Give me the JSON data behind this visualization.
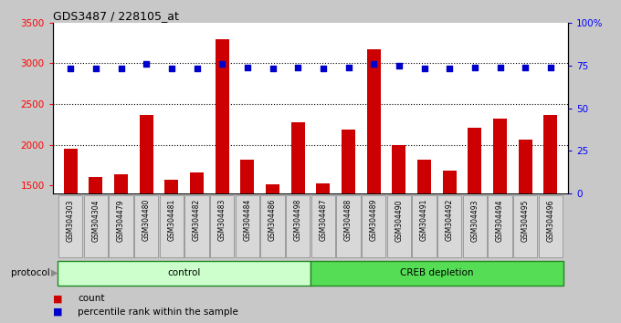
{
  "title": "GDS3487 / 228105_at",
  "samples": [
    "GSM304303",
    "GSM304304",
    "GSM304479",
    "GSM304480",
    "GSM304481",
    "GSM304482",
    "GSM304483",
    "GSM304484",
    "GSM304486",
    "GSM304498",
    "GSM304487",
    "GSM304488",
    "GSM304489",
    "GSM304490",
    "GSM304491",
    "GSM304492",
    "GSM304493",
    "GSM304494",
    "GSM304495",
    "GSM304496"
  ],
  "counts": [
    1950,
    1610,
    1640,
    2370,
    1575,
    1660,
    3295,
    1820,
    1520,
    2280,
    1530,
    2190,
    3175,
    2000,
    1820,
    1680,
    2215,
    2320,
    2060,
    2370
  ],
  "percentiles": [
    73,
    73,
    73,
    76,
    73,
    73,
    76,
    74,
    73,
    74,
    73,
    74,
    76,
    75,
    73,
    73,
    74,
    74,
    74,
    74
  ],
  "control_count": 10,
  "ylim_left": [
    1400,
    3500
  ],
  "ylim_right": [
    0,
    100
  ],
  "yticks_left": [
    1500,
    2000,
    2500,
    3000,
    3500
  ],
  "yticks_right": [
    0,
    25,
    50,
    75,
    100
  ],
  "hlines": [
    2000,
    2500,
    3000
  ],
  "bar_color": "#cc0000",
  "dot_color": "#0000cc",
  "bar_width": 0.55,
  "fig_bg": "#c8c8c8",
  "plot_bg": "#ffffff",
  "sample_box_bg": "#c8c8c8",
  "control_color": "#ccffcc",
  "creb_color": "#55dd55",
  "protocol_border": "#228822",
  "legend_items": [
    "count",
    "percentile rank within the sample"
  ]
}
